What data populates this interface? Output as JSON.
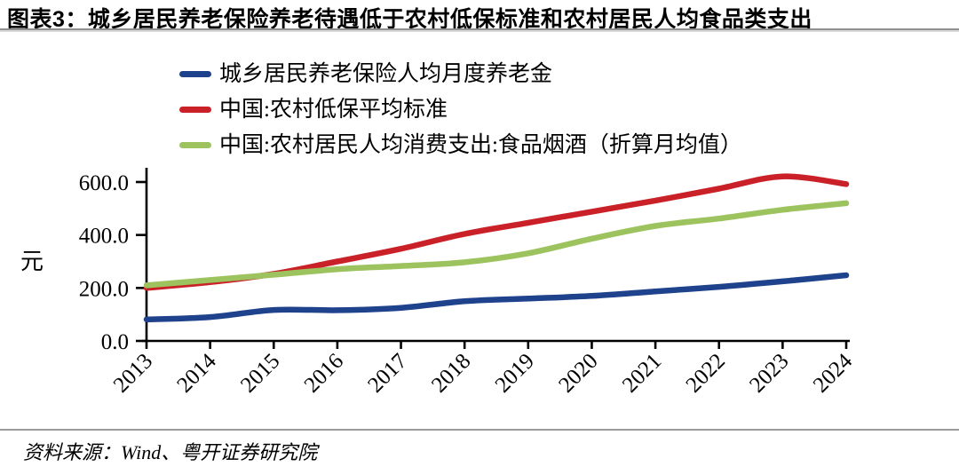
{
  "header": {
    "title": "图表3：城乡居民养老保险养老待遇低于农村低保标准和农村居民人均食品类支出"
  },
  "chart_data": {
    "type": "line",
    "title": "",
    "x": [
      2013,
      2014,
      2015,
      2016,
      2017,
      2018,
      2019,
      2020,
      2021,
      2022,
      2023,
      2024
    ],
    "series": [
      {
        "name": "城乡居民养老保险人均月度养老金",
        "color": "#1F428C",
        "values": [
          81,
          90,
          117,
          116,
          125,
          150,
          160,
          170,
          187,
          204,
          225,
          248
        ]
      },
      {
        "name": "中国:农村低保平均标准",
        "color": "#C92127",
        "values": [
          200,
          222,
          253,
          300,
          348,
          404,
          446,
          488,
          530,
          575,
          621,
          592
        ]
      },
      {
        "name": "中国:农村居民人均消费支出:食品烟酒（折算月均值）",
        "color": "#9DC35F",
        "values": [
          210,
          230,
          250,
          271,
          283,
          297,
          331,
          386,
          434,
          462,
          495,
          520
        ]
      }
    ],
    "xlabel": "",
    "ylabel": "元",
    "yticks": [
      "0.0",
      "200.0",
      "400.0",
      "600.0"
    ],
    "ylim": [
      0,
      650
    ],
    "grid": false,
    "legend_position": "top-left",
    "x_tick_rotation": -45
  },
  "footer": {
    "source": "资料来源：Wind、粤开证券研究院"
  }
}
